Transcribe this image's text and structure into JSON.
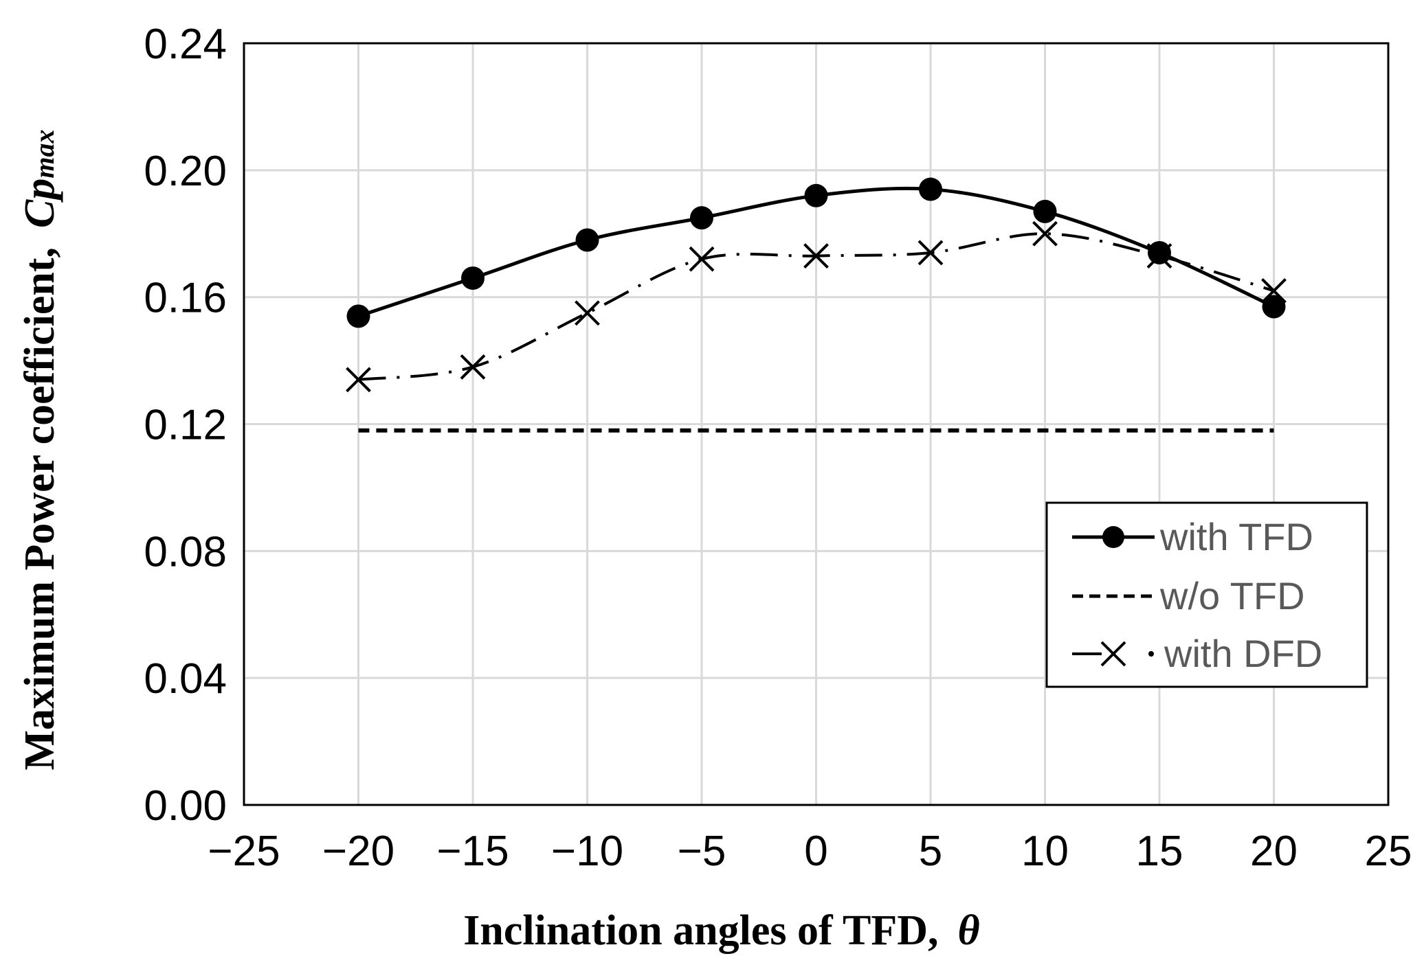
{
  "chart_data": {
    "type": "line",
    "title": "",
    "xlabel": "Inclination angles of TFD,",
    "xlabel_symbol": "θ",
    "ylabel": "Maximum Power coefficient,",
    "ylabel_symbol": "Cp",
    "ylabel_symbol_sub": "max",
    "xlim": [
      -25,
      25
    ],
    "ylim": [
      0.0,
      0.24
    ],
    "x_ticks": [
      -25,
      -20,
      -15,
      -10,
      -5,
      0,
      5,
      10,
      15,
      20,
      25
    ],
    "x_tick_labels": [
      "−25",
      "−20",
      "−15",
      "−10",
      "−5",
      "0",
      "5",
      "10",
      "15",
      "20",
      "25"
    ],
    "y_ticks": [
      0.0,
      0.04,
      0.08,
      0.12,
      0.16,
      0.2,
      0.24
    ],
    "y_tick_labels": [
      "0.00",
      "0.04",
      "0.08",
      "0.12",
      "0.16",
      "0.20",
      "0.24"
    ],
    "grid": true,
    "legend_position": "center-right",
    "x": [
      -20,
      -15,
      -10,
      -5,
      0,
      5,
      10,
      15,
      20
    ],
    "series": [
      {
        "name": "with TFD",
        "style": "solid",
        "marker": "circle",
        "values": [
          0.154,
          0.166,
          0.178,
          0.185,
          0.192,
          0.194,
          0.187,
          0.174,
          0.157
        ]
      },
      {
        "name": "w/o TFD",
        "style": "dashed",
        "marker": "none",
        "values": [
          0.118,
          0.118,
          0.118,
          0.118,
          0.118,
          0.118,
          0.118,
          0.118,
          0.118
        ]
      },
      {
        "name": "with DFD",
        "style": "dash-dot",
        "marker": "x",
        "values": [
          0.134,
          0.138,
          0.155,
          0.172,
          0.173,
          0.174,
          0.18,
          0.173,
          0.162
        ]
      }
    ]
  }
}
